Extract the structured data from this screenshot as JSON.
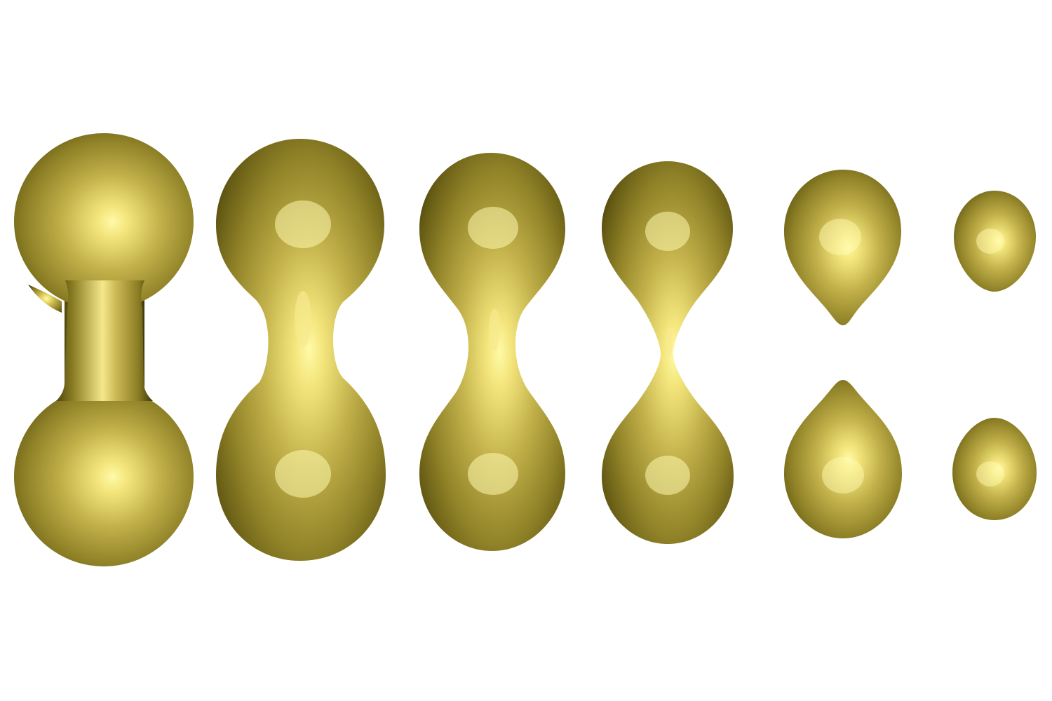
{
  "scene": {
    "background": "#ffffff",
    "surface_colors": {
      "highlight": "#fffaa8",
      "mid": "#b8a73f",
      "body": "#8b7d25",
      "shadow": "#3e3608"
    },
    "stage_count": 6,
    "stages": [
      {
        "state": "connected",
        "neck": "thick"
      },
      {
        "state": "connected",
        "neck": "medium"
      },
      {
        "state": "connected",
        "neck": "thin"
      },
      {
        "state": "connected",
        "neck": "pinching"
      },
      {
        "state": "split",
        "neck": "none"
      },
      {
        "state": "split",
        "neck": "none"
      }
    ]
  }
}
